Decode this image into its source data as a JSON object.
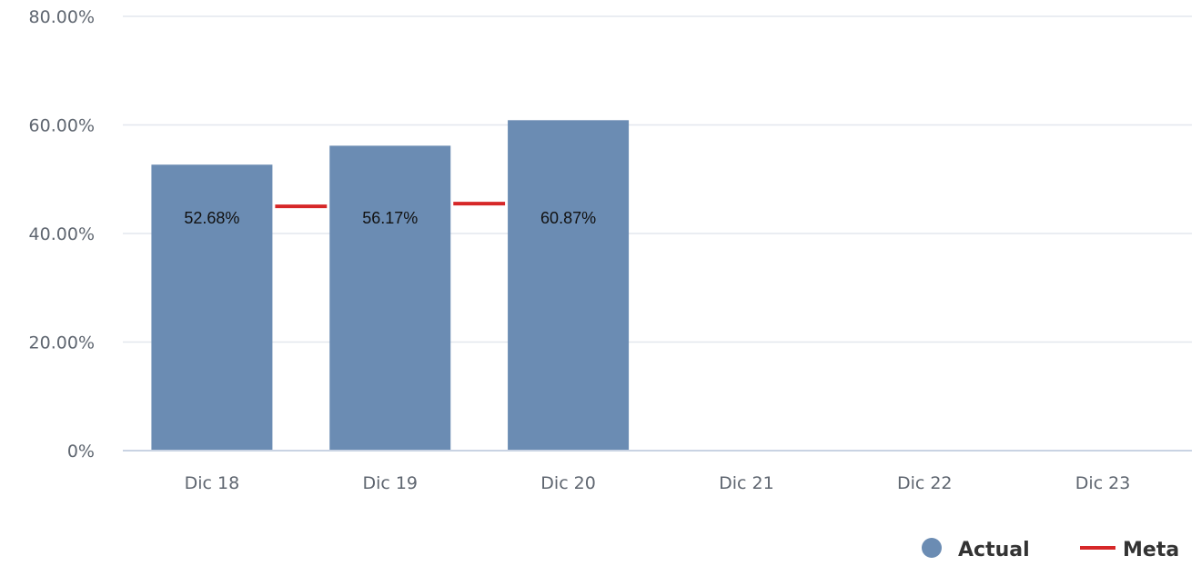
{
  "chart_data": {
    "type": "bar",
    "title": "",
    "xlabel": "",
    "ylabel": "",
    "categories": [
      "Dic 18",
      "Dic 19",
      "Dic 20",
      "Dic 21",
      "Dic 22",
      "Dic 23"
    ],
    "series": [
      {
        "name": "Actual",
        "type": "bar",
        "color": "#6b8cb3",
        "values": [
          52.68,
          56.17,
          60.87,
          null,
          null,
          null
        ],
        "labels": [
          "52.68%",
          "56.17%",
          "60.87%",
          "",
          "",
          ""
        ]
      },
      {
        "name": "Meta",
        "type": "line",
        "color": "#d62728",
        "values": [
          45,
          45.5,
          null,
          null,
          null,
          null
        ]
      }
    ],
    "ylim": [
      0,
      80
    ],
    "yticks": [
      0,
      20,
      40,
      60,
      80
    ],
    "ytick_labels": [
      "0%",
      "20.00%",
      "40.00%",
      "60.00%",
      "80.00%"
    ],
    "grid": true,
    "legend_position": "bottom-right"
  }
}
